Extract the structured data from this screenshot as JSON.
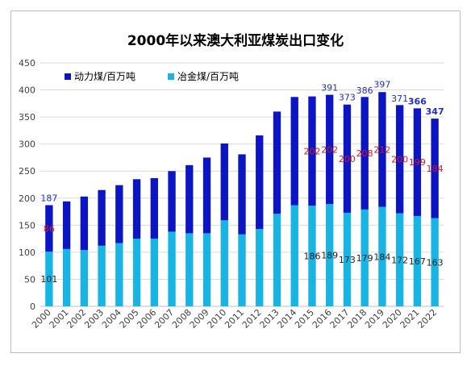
{
  "colors": {
    "thermal": "#0B15C4",
    "metallurgical": "#17B4E4",
    "total_label": "#1F2FC8",
    "thermal_label": "#E0191B",
    "met_label": "#222222",
    "grid": "#d9d9d9",
    "axis_text": "#404040"
  },
  "chart_data": {
    "type": "bar",
    "stacked": true,
    "title": "2000年以来澳大利亚煤炭出口变化",
    "categories": [
      "2000",
      "2001",
      "2002",
      "2003",
      "2004",
      "2005",
      "2006",
      "2007",
      "2008",
      "2009",
      "2010",
      "2011",
      "2012",
      "2013",
      "2014",
      "2015",
      "2016",
      "2017",
      "2018",
      "2019",
      "2020",
      "2021",
      "2022"
    ],
    "series": [
      {
        "name": "冶金煤/百万吨",
        "key": "metallurgical",
        "values": [
          101,
          106,
          104,
          112,
          117,
          125,
          125,
          138,
          135,
          135,
          159,
          133,
          143,
          171,
          187,
          186,
          189,
          173,
          179,
          184,
          172,
          167,
          163
        ]
      },
      {
        "name": "动力煤/百万吨",
        "key": "thermal",
        "values": [
          86,
          88,
          99,
          103,
          107,
          110,
          112,
          112,
          126,
          140,
          142,
          148,
          173,
          189,
          200,
          202,
          202,
          200,
          208,
          212,
          200,
          199,
          184
        ]
      }
    ],
    "totals": [
      187,
      194,
      203,
      215,
      224,
      235,
      237,
      250,
      261,
      275,
      301,
      281,
      316,
      360,
      387,
      388,
      391,
      373,
      386,
      397,
      371,
      366,
      347
    ],
    "total_labels": [
      {
        "index": 0,
        "text": "187",
        "bold": false
      },
      {
        "index": 16,
        "text": "391",
        "bold": false
      },
      {
        "index": 17,
        "text": "373",
        "bold": false
      },
      {
        "index": 18,
        "text": "386",
        "bold": false
      },
      {
        "index": 19,
        "text": "397",
        "bold": false
      },
      {
        "index": 20,
        "text": "371",
        "bold": false
      },
      {
        "index": 21,
        "text": "366",
        "bold": true
      },
      {
        "index": 22,
        "text": "347",
        "bold": true
      }
    ],
    "thermal_labels": [
      {
        "index": 0,
        "text": "86"
      },
      {
        "index": 15,
        "text": "202"
      },
      {
        "index": 16,
        "text": "202"
      },
      {
        "index": 17,
        "text": "200"
      },
      {
        "index": 18,
        "text": "208"
      },
      {
        "index": 19,
        "text": "212"
      },
      {
        "index": 20,
        "text": "200"
      },
      {
        "index": 21,
        "text": "199"
      },
      {
        "index": 22,
        "text": "184"
      }
    ],
    "met_labels": [
      {
        "index": 0,
        "text": "101"
      },
      {
        "index": 15,
        "text": "186"
      },
      {
        "index": 16,
        "text": "189"
      },
      {
        "index": 17,
        "text": "173"
      },
      {
        "index": 18,
        "text": "179"
      },
      {
        "index": 19,
        "text": "184"
      },
      {
        "index": 20,
        "text": "172"
      },
      {
        "index": 21,
        "text": "167"
      },
      {
        "index": 22,
        "text": "163"
      }
    ],
    "ylim": [
      0,
      450
    ],
    "yticks": [
      0,
      50,
      100,
      150,
      200,
      250,
      300,
      350,
      400,
      450
    ],
    "grid": true,
    "legend_position": "top-left"
  }
}
